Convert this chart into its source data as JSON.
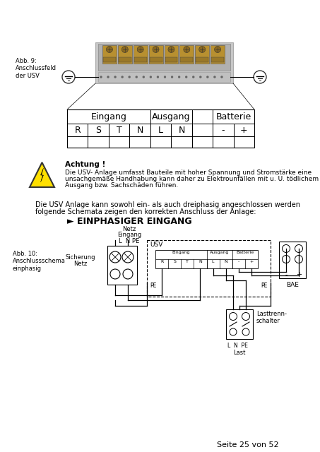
{
  "bg_color": "#ffffff",
  "page_footer": "Seite 25 von 52",
  "fig_label_top": "Abb. 9:\nAnschlussfeld\nder USV",
  "fig_label_bottom": "Abb. 10:\nAnschlussschema\neinphasig",
  "table_header": [
    "Eingang",
    "Ausgang",
    "Batterie"
  ],
  "table_row": [
    "R",
    "S",
    "T",
    "N",
    "L",
    "N",
    "-",
    "+"
  ],
  "warning_title": "Achtung !",
  "warning_line1": "Die USV- Anlage umfasst Bauteile mit hoher Spannung und Stromstärke eine",
  "warning_line2": "unsachgemäße Handhabung kann daher zu Elektrounfällen mit u. U. tödlichem",
  "warning_line3": "Ausgang bzw. Sachschäden führen.",
  "info_line1": "Die USV Anlage kann sowohl ein- als auch dreiphasig angeschlossen werden",
  "info_line2": "folgende Schemata zeigen den korrekten Anschluss der Anlage:",
  "section_title": "► EINPHASIGER EINGANG",
  "label_netz": "Netz\nEingang",
  "label_lnpe_top": "L  N PE",
  "label_sicherung": "Sicherung\nNetz",
  "label_usv": "USV",
  "label_eingang_mini": "Eingang",
  "label_ausgang_mini": "Ausgang",
  "label_batterie_mini": "Batterie",
  "label_pe_left": "PE",
  "label_pe_right": "PE",
  "label_bae": "BAE",
  "label_lasttrenn": "Lasttrenn-\nschalter",
  "label_last": "Last",
  "label_lnpe_last": "L  N  PE"
}
